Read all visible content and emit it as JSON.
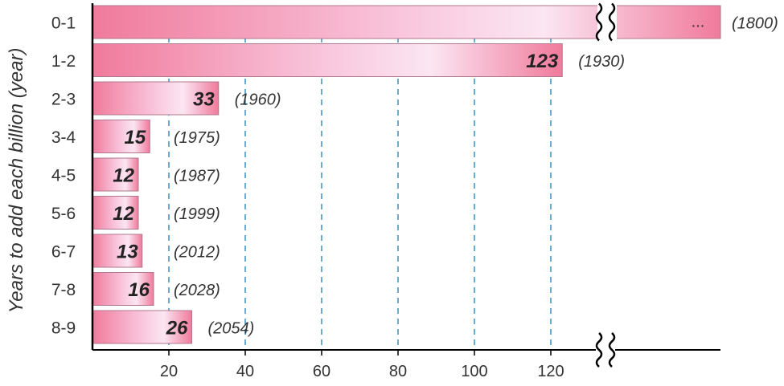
{
  "chart_data": {
    "type": "bar",
    "orientation": "horizontal",
    "ylabel": "Years to add each billion (year)",
    "xlabel": "",
    "categories": [
      "0-1",
      "1-2",
      "2-3",
      "3-4",
      "4-5",
      "5-6",
      "6-7",
      "7-8",
      "8-9"
    ],
    "values": [
      null,
      123,
      33,
      15,
      12,
      12,
      13,
      16,
      26
    ],
    "value_labels": [
      "...",
      "123",
      "33",
      "15",
      "12",
      "12",
      "13",
      "16",
      "26"
    ],
    "year_labels": [
      "(1800)",
      "(1930)",
      "(1960)",
      "(1975)",
      "(1987)",
      "(1999)",
      "(2012)",
      "(2028)",
      "(2054)"
    ],
    "x_ticks": [
      20,
      40,
      60,
      80,
      100,
      120
    ],
    "x_tick_labels": [
      "20",
      "40",
      "60",
      "80",
      "100",
      "120"
    ],
    "xlim": [
      0,
      165
    ],
    "axis_break": true,
    "grid": "vertical-dashed",
    "colors": {
      "bar_dark": "#f07a9c",
      "bar_light": "#fbe4f1",
      "grid": "#3a8fc4",
      "axis": "#000000"
    }
  }
}
